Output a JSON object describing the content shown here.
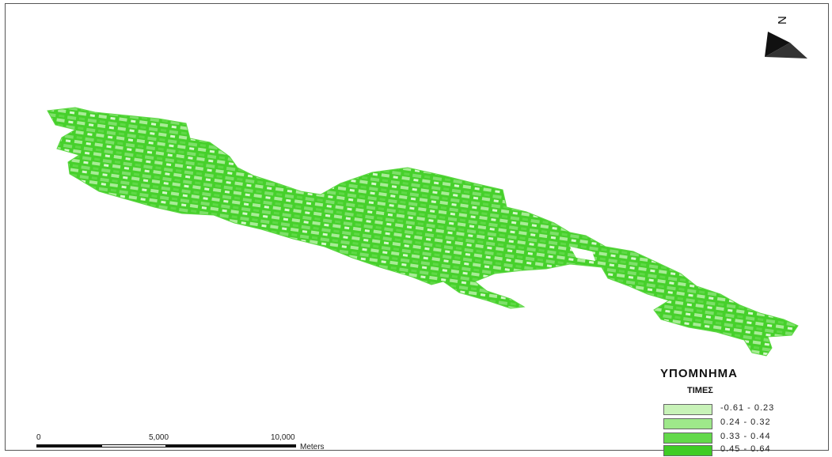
{
  "north_arrow": {
    "label": "N",
    "icon": "north-arrow-icon"
  },
  "legend": {
    "title": "ΥΠΟΜΝΗΜΑ",
    "subtitle": "ΤΙΜΕΣ",
    "classes": [
      {
        "label": "-0.61 - 0.23",
        "color": "#c8f2b8"
      },
      {
        "label": "0.24 - 0.32",
        "color": "#9ee88a"
      },
      {
        "label": "0.33 - 0.44",
        "color": "#63d94a"
      },
      {
        "label": "0.45 - 0.64",
        "color": "#3fcc25"
      }
    ]
  },
  "scale_bar": {
    "ticks": [
      "0",
      "5,000",
      "10,000"
    ],
    "unit": "Meters"
  },
  "colors": {
    "region_dark": "#3fcc25",
    "region_mid": "#63d94a",
    "region_light": "#c8f2b8"
  }
}
